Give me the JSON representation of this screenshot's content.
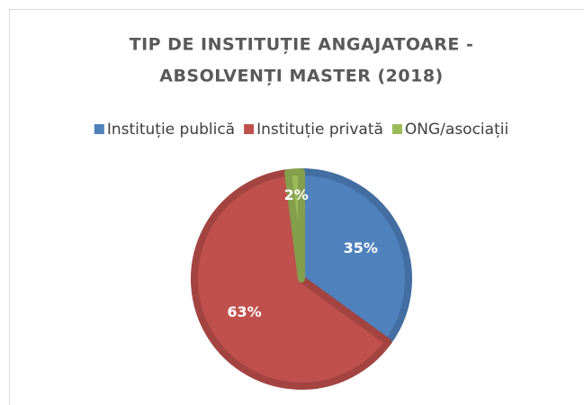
{
  "chart_data": {
    "type": "pie",
    "title": [
      "TIP DE INSTITUȚIE ANGAJATOARE -",
      "ABSOLVENȚI MASTER (2018)"
    ],
    "categories": [
      "Instituție publică",
      "Instituție privată",
      "ONG/asociații"
    ],
    "values": [
      35,
      63,
      2
    ],
    "value_labels": [
      "35%",
      "63%",
      "2%"
    ],
    "colors": [
      "#4f81bd",
      "#c0504d",
      "#9bbb59"
    ],
    "legend": "top"
  }
}
